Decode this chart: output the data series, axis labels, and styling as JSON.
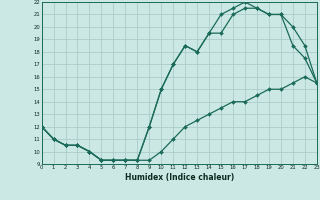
{
  "xlabel": "Humidex (Indice chaleur)",
  "bg_color": "#cce8e4",
  "grid_color": "#aaccca",
  "line_color": "#1a6b5a",
  "xmin": 0,
  "xmax": 23,
  "ymin": 9,
  "ymax": 22,
  "line1_x": [
    0,
    1,
    2,
    3,
    4,
    5,
    6,
    7,
    8,
    9,
    10,
    11,
    12,
    13,
    14,
    15,
    16,
    17,
    18,
    19,
    20,
    21,
    22,
    23
  ],
  "line1_y": [
    12,
    11,
    10.5,
    10.5,
    10,
    9.3,
    9.3,
    9.3,
    9.3,
    9.3,
    10,
    11,
    12,
    12.5,
    13,
    13.5,
    14,
    14,
    14.5,
    15,
    15,
    15.5,
    16,
    15.5
  ],
  "line2_x": [
    0,
    1,
    2,
    3,
    4,
    5,
    6,
    7,
    8,
    9,
    10,
    11,
    12,
    13,
    14,
    15,
    16,
    17,
    18,
    19,
    20,
    21,
    22,
    23
  ],
  "line2_y": [
    12,
    11,
    10.5,
    10.5,
    10,
    9.3,
    9.3,
    9.3,
    9.3,
    12,
    15,
    17,
    18.5,
    18,
    19.5,
    19.5,
    21,
    21.5,
    21.5,
    21,
    21,
    18.5,
    17.5,
    15.5
  ],
  "line3_x": [
    0,
    1,
    2,
    3,
    4,
    5,
    6,
    7,
    8,
    9,
    10,
    11,
    12,
    13,
    14,
    15,
    16,
    17,
    18,
    19,
    20,
    21,
    22,
    23
  ],
  "line3_y": [
    12,
    11,
    10.5,
    10.5,
    10,
    9.3,
    9.3,
    9.3,
    9.3,
    12,
    15,
    17,
    18.5,
    18,
    19.5,
    21,
    21.5,
    22,
    21.5,
    21,
    21,
    20,
    18.5,
    15.5
  ]
}
